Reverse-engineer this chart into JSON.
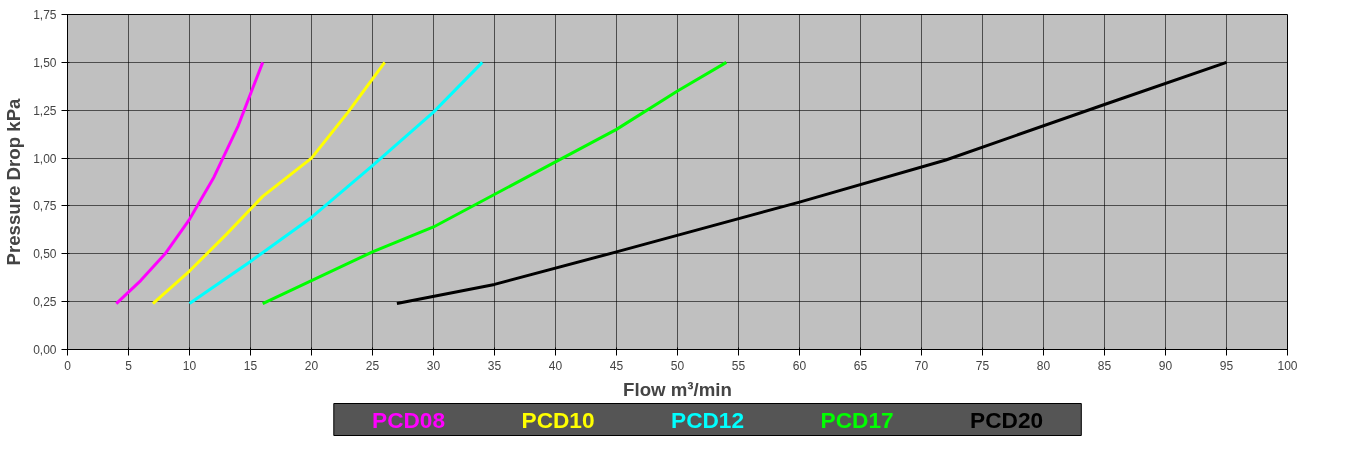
{
  "chart_data": {
    "type": "line",
    "xlabel": "Flow m³/min",
    "ylabel": "Pressure Drop kPa",
    "xlim": [
      0,
      100
    ],
    "ylim": [
      0,
      1.75
    ],
    "xticks": [
      0,
      5,
      10,
      15,
      20,
      25,
      30,
      35,
      40,
      45,
      50,
      55,
      60,
      65,
      70,
      75,
      80,
      85,
      90,
      95,
      100
    ],
    "yticks": [
      {
        "value": 0,
        "label": "0,00"
      },
      {
        "value": 0.25,
        "label": "0,25"
      },
      {
        "value": 0.5,
        "label": "0,50"
      },
      {
        "value": 0.75,
        "label": "0,75"
      },
      {
        "value": 1.0,
        "label": "1,00"
      },
      {
        "value": 1.25,
        "label": "1,25"
      },
      {
        "value": 1.5,
        "label": "1,50"
      },
      {
        "value": 1.75,
        "label": "1,75"
      }
    ],
    "grid": true,
    "legend": "bottom",
    "marker": "none",
    "line_style": "solid",
    "series": [
      {
        "name": "PCD08",
        "color": "#ff00ff",
        "x": [
          4,
          6,
          8,
          10,
          12,
          14,
          16
        ],
        "values": [
          0.24,
          0.36,
          0.5,
          0.68,
          0.9,
          1.17,
          1.5
        ]
      },
      {
        "name": "PCD10",
        "color": "#ffff00",
        "x": [
          7,
          10,
          13,
          16,
          20,
          23,
          26
        ],
        "values": [
          0.24,
          0.41,
          0.6,
          0.8,
          1.0,
          1.24,
          1.5
        ]
      },
      {
        "name": "PCD12",
        "color": "#00ffff",
        "x": [
          10,
          15,
          20,
          25,
          30,
          34
        ],
        "values": [
          0.24,
          0.46,
          0.69,
          0.96,
          1.24,
          1.5
        ]
      },
      {
        "name": "PCD17",
        "color": "#00ff00",
        "x": [
          16,
          25,
          30,
          40,
          45,
          50,
          54
        ],
        "values": [
          0.24,
          0.51,
          0.64,
          0.98,
          1.15,
          1.35,
          1.5
        ]
      },
      {
        "name": "PCD20",
        "color": "#000000",
        "x": [
          27,
          35,
          45,
          60,
          72,
          85,
          95
        ],
        "values": [
          0.24,
          0.34,
          0.51,
          0.77,
          0.99,
          1.28,
          1.5
        ]
      }
    ]
  }
}
